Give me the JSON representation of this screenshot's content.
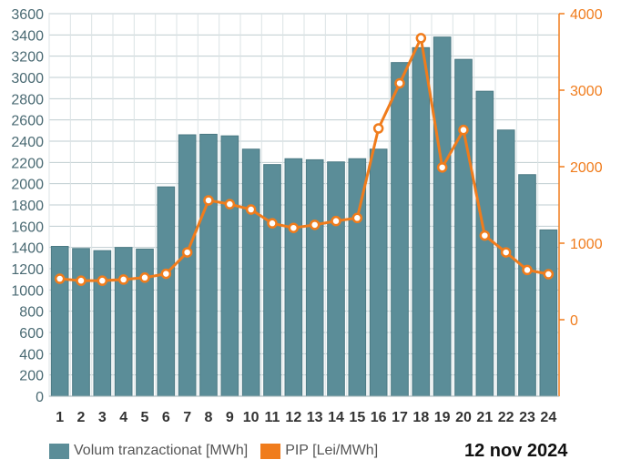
{
  "chart_data": {
    "type": "bar+line",
    "date": "12 nov 2024",
    "categories": [
      "1",
      "2",
      "3",
      "4",
      "5",
      "6",
      "7",
      "8",
      "9",
      "10",
      "11",
      "12",
      "13",
      "14",
      "15",
      "16",
      "17",
      "18",
      "19",
      "20",
      "21",
      "22",
      "23",
      "24"
    ],
    "series": [
      {
        "name": "Volum tranzactionat [MWh]",
        "type": "bar",
        "axis": "left",
        "color": "#5b8d98",
        "values": [
          1410,
          1390,
          1370,
          1400,
          1385,
          1970,
          2460,
          2465,
          2450,
          2325,
          2180,
          2235,
          2225,
          2205,
          2235,
          2325,
          3140,
          3280,
          3380,
          3170,
          2870,
          2505,
          2085,
          1565
        ]
      },
      {
        "name": "PIP [Lei/MWh]",
        "type": "line",
        "axis": "right",
        "color": "#f07c1c",
        "values": [
          535,
          510,
          510,
          525,
          550,
          600,
          880,
          1560,
          1510,
          1440,
          1260,
          1200,
          1240,
          1290,
          1330,
          2500,
          3090,
          3680,
          1990,
          2480,
          1100,
          880,
          650,
          595
        ]
      }
    ],
    "y_left": {
      "min": 0,
      "max": 3600,
      "ticks": [
        "0",
        "200",
        "400",
        "600",
        "800",
        "1000",
        "1200",
        "1400",
        "1600",
        "1800",
        "2000",
        "2200",
        "2400",
        "2600",
        "2800",
        "3000",
        "3200",
        "3400",
        "3600"
      ],
      "color": "#5b8d98"
    },
    "y_right": {
      "min": -1000,
      "max": 4000,
      "ticks": [
        "0",
        "1000",
        "2000",
        "3000",
        "4000"
      ],
      "color": "#f07c1c"
    },
    "grid": true,
    "legend_position": "bottom-left"
  }
}
